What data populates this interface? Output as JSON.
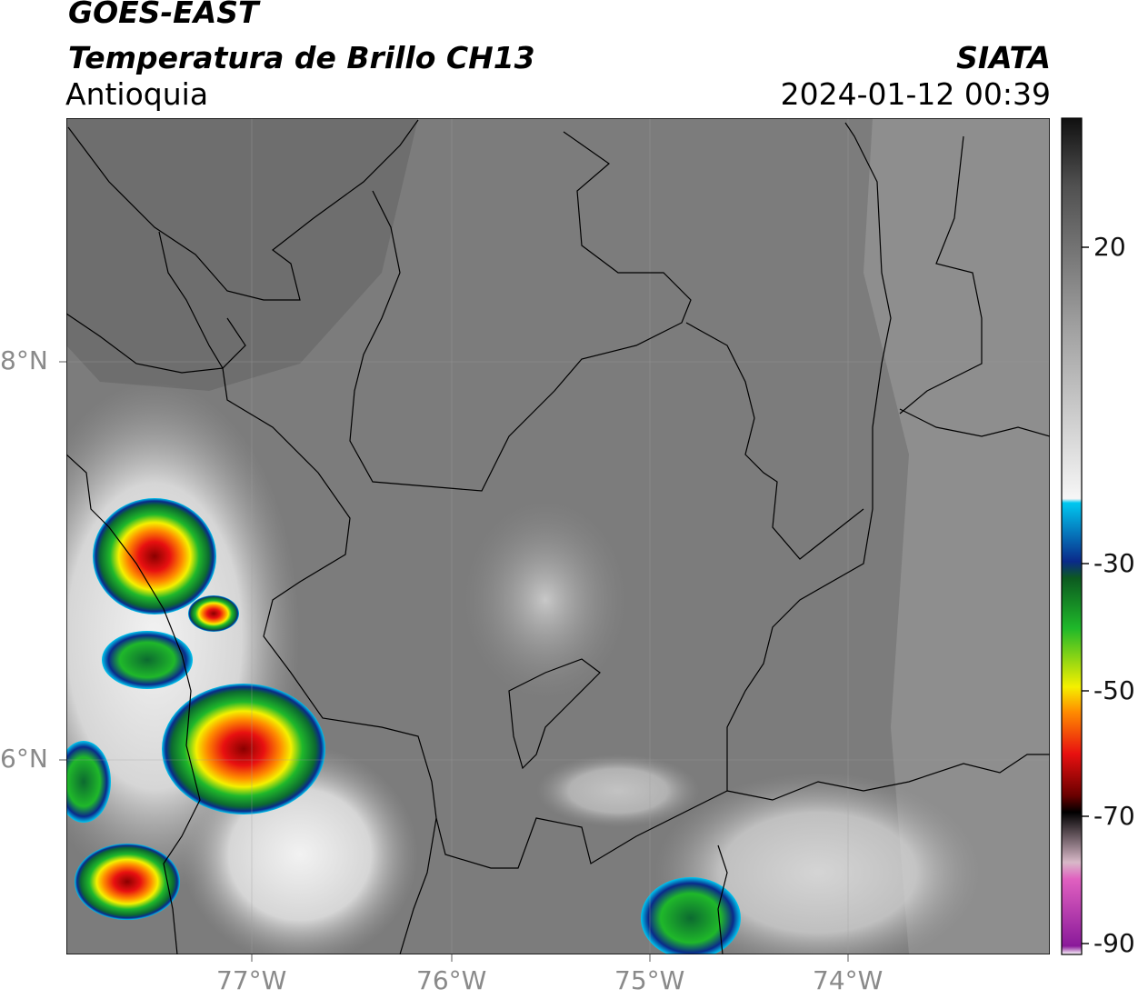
{
  "header": {
    "satellite": "GOES-EAST",
    "product": "Temperatura de Brillo CH13",
    "region": "Antioquia",
    "organization": "SIATA",
    "timestamp": "2024-01-12 00:39"
  },
  "axes": {
    "latitude_labels": [
      "8°N",
      "6°N"
    ],
    "longitude_labels": [
      "77°W",
      "76°W",
      "75°W",
      "74°W"
    ],
    "grid": true
  },
  "colorbar": {
    "tick_labels": [
      "20",
      "-30",
      "-50",
      "-70",
      "-90"
    ],
    "colors": {
      "warm_gray": "#7a7a7a",
      "light_gray": "#e8e8e8",
      "cyan": "#00c8f0",
      "dark_blue": "#0a2a8a",
      "green": "#1fb82a",
      "yellow": "#f5f000",
      "orange": "#ff8c00",
      "red": "#e81010",
      "dark_red": "#6a0000",
      "black": "#000000",
      "pink": "#e060c0",
      "purple": "#8a1a9a"
    }
  }
}
